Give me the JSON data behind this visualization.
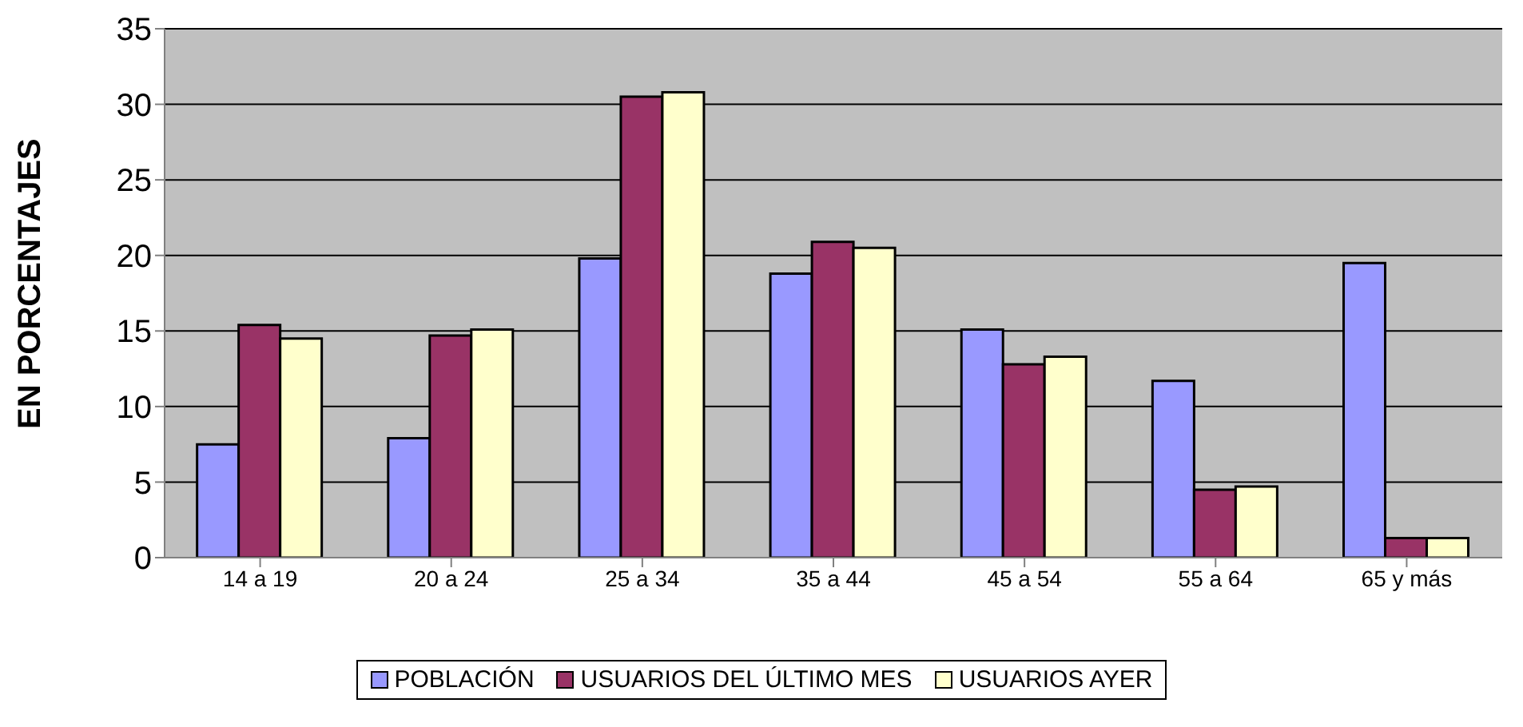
{
  "chart_data": {
    "type": "bar",
    "ylabel": "EN PORCENTAJES",
    "categories": [
      "14 a 19",
      "20 a 24",
      "25 a 34",
      "35 a 44",
      "45 a 54",
      "55 a 64",
      "65 y más"
    ],
    "series": [
      {
        "name": "POBLACIÓN",
        "color": "#9999ff",
        "values": [
          7.5,
          7.9,
          19.8,
          18.8,
          15.1,
          11.7,
          19.5
        ]
      },
      {
        "name": "USUARIOS DEL ÚLTIMO MES",
        "color": "#993366",
        "values": [
          15.4,
          14.7,
          30.5,
          20.9,
          12.8,
          4.5,
          1.3
        ]
      },
      {
        "name": "USUARIOS AYER",
        "color": "#ffffcc",
        "values": [
          14.5,
          15.1,
          30.8,
          20.5,
          13.3,
          4.7,
          1.3
        ]
      }
    ],
    "ylim": [
      0,
      35
    ],
    "yticks": [
      0,
      5,
      10,
      15,
      20,
      25,
      30,
      35
    ],
    "grid": "y",
    "legend": "bottom"
  }
}
